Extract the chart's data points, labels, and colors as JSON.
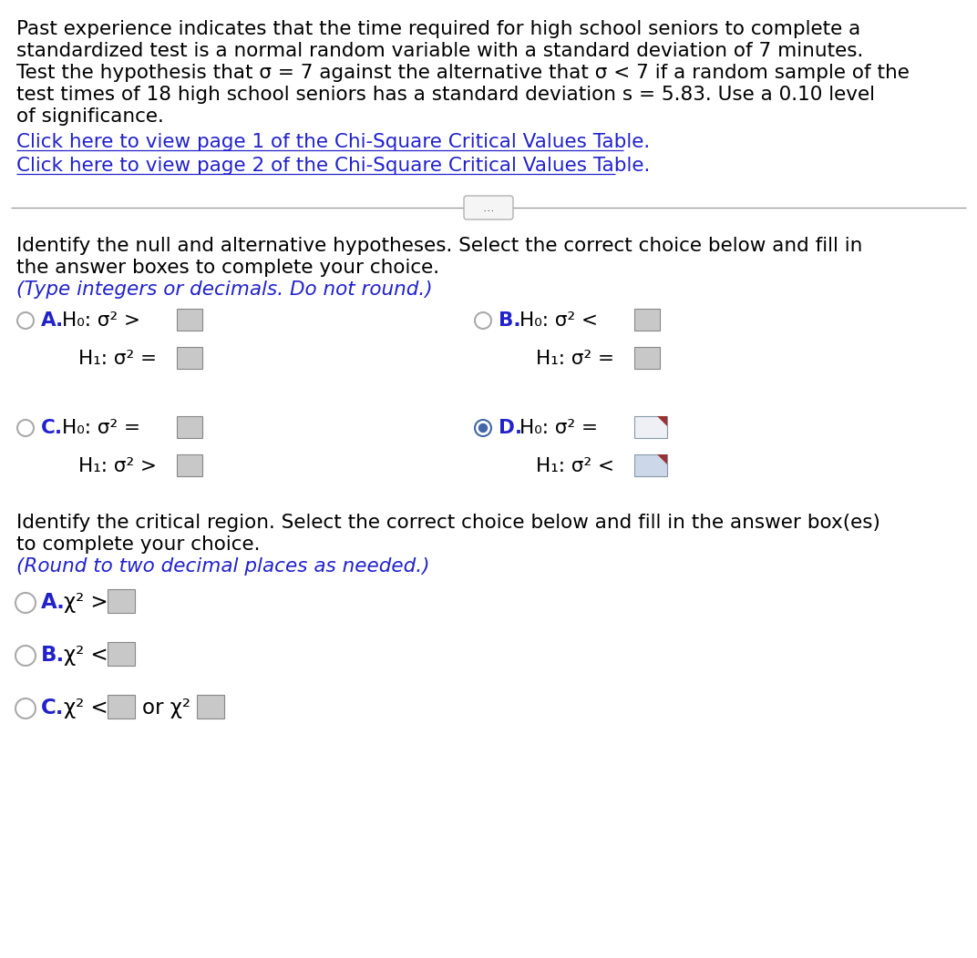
{
  "bg_color": "#ffffff",
  "intro_lines": [
    "Past experience indicates that the time required for high school seniors to complete a",
    "standardized test is a normal random variable with a standard deviation of 7 minutes.",
    "Test the hypothesis that σ = 7 against the alternative that σ < 7 if a random sample of the",
    "test times of 18 high school seniors has a standard deviation s = 5.83. Use a 0.10 level",
    "of significance."
  ],
  "link1": "Click here to view page 1 of the Chi-Square Critical Values Table.",
  "link2": "Click here to view page 2 of the Chi-Square Critical Values Table.",
  "section1_lines": [
    "Identify the null and alternative hypotheses. Select the correct choice below and fill in",
    "the answer boxes to complete your choice.",
    "(Type integers or decimals. Do not round.)"
  ],
  "section2_lines": [
    "Identify the critical region. Select the correct choice below and fill in the answer box(es)",
    "to complete your choice.",
    "(Round to two decimal places as needed.)"
  ],
  "black": "#000000",
  "dark_navy": "#1a1a6e",
  "blue_link": "#2222cc",
  "blue_label": "#2244bb",
  "gray_box": "#c8c8c8",
  "light_blue_box": "#ccd8e8",
  "radio_border": "#aaaaaa",
  "radio_selected_outer": "#4466aa",
  "radio_selected_inner": "#4466aa",
  "divider_color": "#999999",
  "btn_face": "#f5f5f5",
  "btn_edge": "#aaaaaa",
  "red_corner": "#993333",
  "font_main": 15.5,
  "font_options": 15.5
}
